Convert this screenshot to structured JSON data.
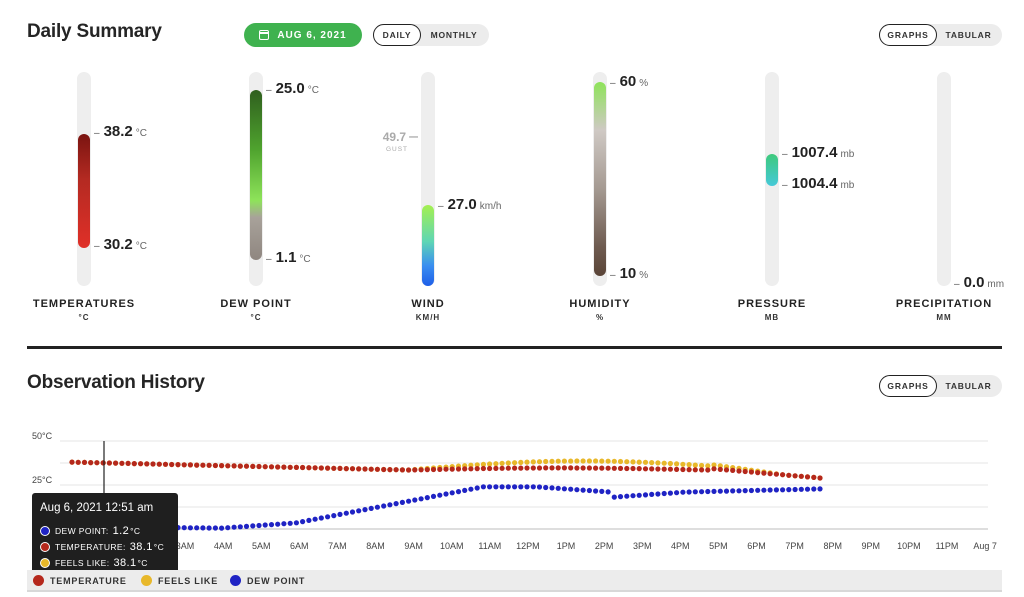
{
  "daily": {
    "title": "Daily Summary",
    "date_button": "AUG 6, 2021",
    "period_tabs": [
      "DAILY",
      "MONTHLY"
    ],
    "view_tabs": [
      "GRAPHS",
      "TABULAR"
    ]
  },
  "metrics": {
    "temperature": {
      "label": "TEMPERATURES",
      "unit_label": "°C",
      "high": "38.2",
      "low": "30.2",
      "unit": "°C"
    },
    "dew_point": {
      "label": "DEW POINT",
      "unit_label": "°C",
      "high": "25.0",
      "low": "1.1",
      "unit": "°C"
    },
    "wind": {
      "label": "WIND",
      "unit_label": "KM/H",
      "gust_value": "49.7",
      "gust_label": "GUST",
      "speed": "27.0",
      "unit": "km/h"
    },
    "humidity": {
      "label": "HUMIDITY",
      "unit_label": "%",
      "high": "60",
      "low": "10",
      "unit": "%"
    },
    "pressure": {
      "label": "PRESSURE",
      "unit_label": "MB",
      "high": "1007.4",
      "low": "1004.4",
      "unit": "mb"
    },
    "precipitation": {
      "label": "PRECIPITATION",
      "unit_label": "MM",
      "value": "0.0",
      "unit": "mm"
    }
  },
  "history": {
    "title": "Observation History",
    "view_tabs": [
      "GRAPHS",
      "TABULAR"
    ],
    "tooltip": {
      "title": "Aug 6, 2021 12:51 am",
      "rows": [
        {
          "label": "DEW POINT:",
          "value": "1.2",
          "unit": "°C"
        },
        {
          "label": "TEMPERATURE:",
          "value": "38.1",
          "unit": "°C"
        },
        {
          "label": "FEELS LIKE:",
          "value": "38.1",
          "unit": "°C"
        }
      ]
    },
    "legend": [
      "TEMPERATURE",
      "FEELS LIKE",
      "DEW POINT"
    ]
  },
  "colors": {
    "accent": "#3fb24f",
    "temperature": "#b5281c",
    "feels_like": "#e8b82a",
    "dew_point": "#1f23c4"
  },
  "chart_data": {
    "type": "line",
    "y_ticks": [
      "50°C",
      "25°C"
    ],
    "x_ticks": [
      "3AM",
      "4AM",
      "5AM",
      "6AM",
      "7AM",
      "8AM",
      "9AM",
      "10AM",
      "11AM",
      "12PM",
      "1PM",
      "2PM",
      "3PM",
      "4PM",
      "5PM",
      "6PM",
      "7PM",
      "8PM",
      "9PM",
      "10PM",
      "11PM",
      "Aug 7"
    ],
    "ylim": [
      0,
      50
    ],
    "x_hours": [
      0,
      0.5,
      1,
      1.5,
      2,
      2.5,
      3,
      3.5,
      4,
      4.5,
      5,
      5.5,
      6,
      6.5,
      7,
      7.5,
      8,
      8.5,
      9,
      9.5,
      10,
      10.5,
      11,
      11.5,
      12,
      12.5,
      13,
      13.5,
      14,
      14.5,
      15,
      15.5,
      16,
      16.5,
      17,
      17.5,
      18,
      18.5,
      19,
      19.5,
      20,
      20.5,
      21,
      21.5,
      22,
      22.5,
      23,
      23.5,
      24,
      24.5,
      25,
      25.5,
      26,
      26.5,
      27,
      27.5,
      28,
      28.5,
      29,
      29.5,
      30,
      30.5,
      31,
      31.5,
      32,
      32.5,
      33,
      33.5,
      34,
      34.5,
      35,
      35.5,
      36,
      36.5,
      37,
      37.5,
      38,
      38.5,
      39,
      39.5,
      40,
      40.5,
      41,
      41.5,
      42,
      42.5,
      43,
      43.5,
      44,
      44.5,
      45,
      45.5,
      46,
      46.5,
      47,
      47.5,
      48,
      48.5,
      49,
      49.5,
      50,
      50.5,
      51,
      51.5,
      52,
      52.5,
      53,
      53.5,
      54,
      54.5,
      55,
      55.5,
      56,
      56.5,
      57,
      57.5,
      58,
      58.5,
      59,
      59.5,
      60,
      60.5,
      61,
      61.5,
      62,
      62.5,
      63,
      63.5,
      64,
      64.5,
      65,
      65.5,
      66,
      66.5,
      67,
      67.5,
      68,
      68.5,
      69,
      69.5,
      70,
      70.5,
      71,
      71.5,
      72,
      72.5,
      73,
      73.5,
      74,
      74.5,
      75,
      75.5,
      76,
      76.5,
      77,
      77.5,
      78,
      78.5,
      79,
      79.5,
      80,
      80.5,
      81,
      81.5,
      82,
      82.5,
      83,
      83.5,
      84,
      84.5,
      85,
      85.5,
      86,
      86.5,
      87,
      87.5,
      88,
      88.5,
      89,
      89.5,
      90,
      90.5,
      91,
      91.5,
      92,
      92.5,
      93,
      93.5,
      94,
      94.5,
      95,
      95.5,
      96,
      96.5,
      97,
      97.5,
      98,
      98.5,
      99,
      99.5,
      100
    ],
    "series": [
      {
        "name": "TEMPERATURE",
        "color": "#b5281c"
      },
      {
        "name": "FEELS LIKE",
        "color": "#e8b82a"
      },
      {
        "name": "DEW POINT",
        "color": "#1f23c4"
      }
    ]
  }
}
